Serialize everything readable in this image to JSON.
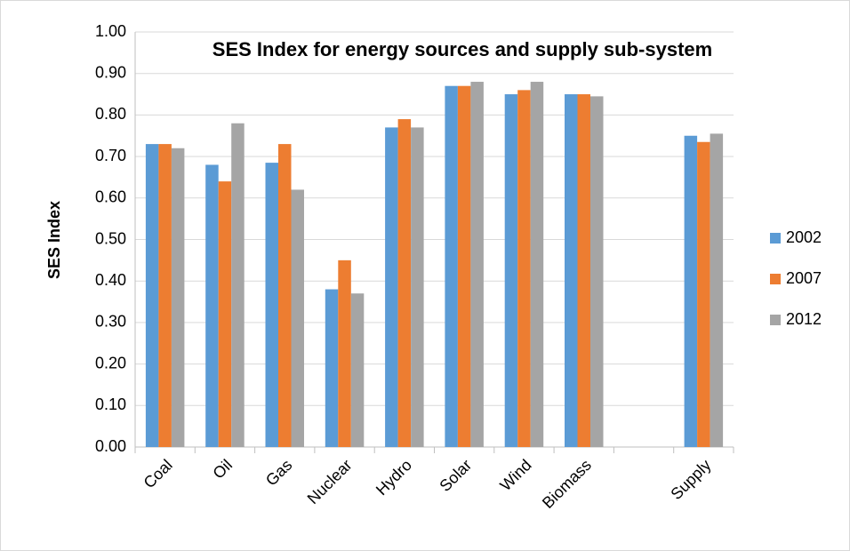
{
  "chart_data": {
    "type": "bar",
    "title": "SES Index for energy sources and supply sub-system",
    "y_label": "SES Index",
    "categories": [
      "Coal",
      "Oil",
      "Gas",
      "Nuclear",
      "Hydro",
      "Solar",
      "Wind",
      "Biomass",
      null,
      "Supply"
    ],
    "series": [
      {
        "name": "2002",
        "color": "#5b9bd5",
        "values": [
          0.73,
          0.68,
          0.685,
          0.38,
          0.77,
          0.87,
          0.85,
          0.85,
          null,
          0.75
        ]
      },
      {
        "name": "2007",
        "color": "#ed7d31",
        "values": [
          0.73,
          0.64,
          0.73,
          0.45,
          0.79,
          0.87,
          0.86,
          0.85,
          null,
          0.735
        ]
      },
      {
        "name": "2012",
        "color": "#a5a5a5",
        "values": [
          0.72,
          0.78,
          0.62,
          0.37,
          0.77,
          0.88,
          0.88,
          0.845,
          null,
          0.755
        ]
      }
    ],
    "ylim": [
      0,
      1
    ],
    "yticks": [
      {
        "value": 0,
        "label": "0.00"
      },
      {
        "value": 0.1,
        "label": "0.10"
      },
      {
        "value": 0.2,
        "label": "0.20"
      },
      {
        "value": 0.3,
        "label": "0.30"
      },
      {
        "value": 0.4,
        "label": "0.40"
      },
      {
        "value": 0.5,
        "label": "0.50"
      },
      {
        "value": 0.6,
        "label": "0.60"
      },
      {
        "value": 0.7,
        "label": "0.70"
      },
      {
        "value": 0.8,
        "label": "0.80"
      },
      {
        "value": 0.9,
        "label": "0.90"
      },
      {
        "value": 1,
        "label": "1.00"
      }
    ],
    "grid": true,
    "legend": "right"
  }
}
